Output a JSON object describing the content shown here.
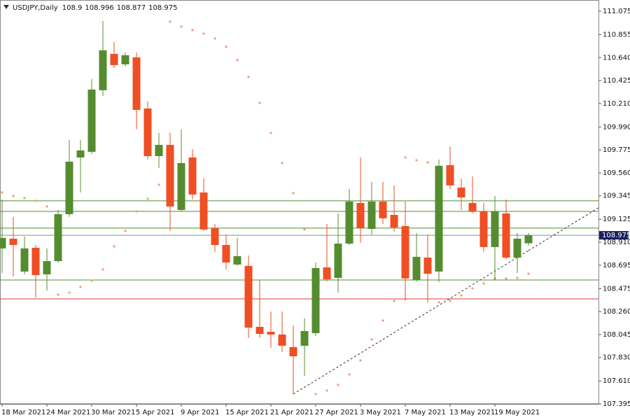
{
  "chart_data": {
    "type": "candlestick",
    "title": "USDJPY,Daily",
    "categories": [
      "18 Mar 2021",
      null,
      null,
      null,
      "24 Mar 2021",
      null,
      null,
      null,
      "30 Mar 2021",
      null,
      null,
      null,
      "5 Apr 2021",
      null,
      null,
      null,
      "9 Apr 2021",
      null,
      null,
      null,
      "15 Apr 2021",
      null,
      null,
      null,
      "21 Apr 2021",
      null,
      null,
      null,
      "27 Apr 2021",
      null,
      null,
      null,
      "3 May 2021",
      null,
      null,
      null,
      "7 May 2021",
      null,
      null,
      null,
      "13 May 2021",
      null,
      null,
      null,
      "19 May 2021",
      null,
      null,
      null
    ],
    "open": [
      108.852,
      108.943,
      108.635,
      108.858,
      108.609,
      108.733,
      109.173,
      109.704,
      109.757,
      110.334,
      110.675,
      110.577,
      110.642,
      110.163,
      109.717,
      109.822,
      109.212,
      109.704,
      109.376,
      109.042,
      108.884,
      108.701,
      108.688,
      108.117,
      108.071,
      108.045,
      107.927,
      107.94,
      108.058,
      108.674,
      108.576,
      108.897,
      109.278,
      109.035,
      109.291,
      109.166,
      109.061,
      108.556,
      108.766,
      108.635,
      109.632,
      109.422,
      109.278,
      109.199,
      108.865,
      109.18,
      108.766,
      108.9
    ],
    "high": [
      109.311,
      109.147,
      108.963,
      108.884,
      108.852,
      109.212,
      109.868,
      109.868,
      110.439,
      110.983,
      110.786,
      110.688,
      110.688,
      110.229,
      109.934,
      109.934,
      109.967,
      109.783,
      109.507,
      109.081,
      108.983,
      108.95,
      108.786,
      108.556,
      108.261,
      108.261,
      108.13,
      108.196,
      108.72,
      109.081,
      109.18,
      109.409,
      109.704,
      109.475,
      109.475,
      109.442,
      109.291,
      108.996,
      108.983,
      109.685,
      109.803,
      109.507,
      109.527,
      109.278,
      109.343,
      109.311,
      108.996,
      108.996
    ],
    "low": [
      108.622,
      108.589,
      108.609,
      108.392,
      108.458,
      108.72,
      109.147,
      109.376,
      109.737,
      110.281,
      110.544,
      110.557,
      109.967,
      109.685,
      109.606,
      109.016,
      109.2,
      109.311,
      109.016,
      108.819,
      108.655,
      108.688,
      108.012,
      108.012,
      107.92,
      107.881,
      107.487,
      107.658,
      108.032,
      108.543,
      108.438,
      108.884,
      108.904,
      108.983,
      109.081,
      109.009,
      108.36,
      108.543,
      108.347,
      108.537,
      109.409,
      109.212,
      109.18,
      108.819,
      108.556,
      108.753,
      108.622,
      108.877
    ],
    "close": [
      108.95,
      108.884,
      108.852,
      108.602,
      108.733,
      109.173,
      109.665,
      109.77,
      110.34,
      110.708,
      110.57,
      110.662,
      110.15,
      109.717,
      109.822,
      109.245,
      109.652,
      109.357,
      109.029,
      108.884,
      108.72,
      108.779,
      108.11,
      108.051,
      108.045,
      107.94,
      107.841,
      108.078,
      108.668,
      108.563,
      108.897,
      109.291,
      109.042,
      109.291,
      109.134,
      109.048,
      108.57,
      108.773,
      108.615,
      109.626,
      109.442,
      109.33,
      109.199,
      108.865,
      109.199,
      108.766,
      108.943,
      108.975
    ],
    "up_color": "#548c2f",
    "down_color": "#f04e23",
    "sar": {
      "color": "#f0a078",
      "values": [
        109.376,
        109.343,
        109.324,
        109.298,
        109.245,
        108.419,
        108.438,
        108.491,
        108.55,
        108.655,
        108.871,
        109.016,
        109.199,
        109.317,
        109.448,
        110.977,
        110.931,
        110.898,
        110.865,
        110.819,
        110.741,
        110.616,
        110.459,
        110.216,
        109.934,
        109.652,
        109.37,
        109.029,
        107.487,
        107.52,
        107.573,
        107.671,
        107.802,
        107.999,
        108.176,
        108.36,
        109.704,
        109.678,
        109.658,
        108.347,
        108.36,
        108.412,
        108.478,
        108.524,
        108.57,
        108.57,
        108.576,
        108.615
      ]
    },
    "trendline": {
      "color": "#333333",
      "values": [
        null,
        null,
        null,
        null,
        null,
        null,
        null,
        null,
        null,
        null,
        null,
        null,
        null,
        null,
        null,
        null,
        null,
        null,
        null,
        null,
        null,
        null,
        null,
        null,
        null,
        null,
        107.487,
        null,
        null,
        null,
        null,
        null,
        null,
        null,
        null,
        null,
        null,
        null,
        null,
        null,
        null,
        null,
        null,
        null,
        null,
        null,
        null,
        108.832
      ]
    },
    "levels": [
      {
        "value": 109.298,
        "color": "#4e8f2e"
      },
      {
        "value": 109.199,
        "color": "#4e8f2e"
      },
      {
        "value": 109.042,
        "color": "#4e8f2e"
      },
      {
        "value": 108.556,
        "color": "#4e8f2e"
      },
      {
        "value": 108.379,
        "color": "#e03a3a"
      }
    ],
    "price_label_color": "#1a1f5c",
    "ylim": [
      107.395,
      111.16
    ],
    "yticks": [
      111.075,
      110.855,
      {
        "value": 110.64,
        "label": "110.640"
      },
      110.425,
      {
        "value": 110.21,
        "label": "110.210"
      },
      {
        "value": 109.99,
        "label": "109.990"
      },
      109.775,
      {
        "value": 109.56,
        "label": "109.560"
      },
      109.345,
      109.125,
      {
        "value": 108.91,
        "label": "108.910"
      },
      108.695,
      108.475,
      {
        "value": 108.26,
        "label": "108.260"
      },
      108.045,
      {
        "value": 107.83,
        "label": "107.830"
      },
      {
        "value": 107.61,
        "label": "107.610"
      },
      107.395
    ]
  }
}
